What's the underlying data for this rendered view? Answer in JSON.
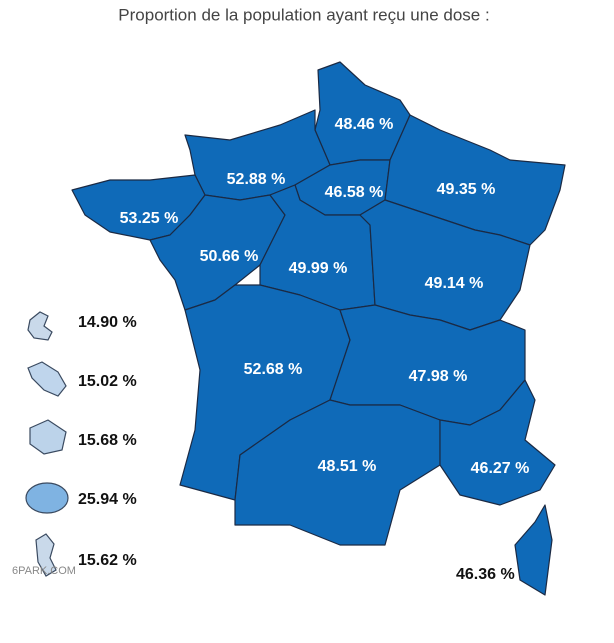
{
  "title": "Proportion de la population ayant reçu une dose :",
  "regions": [
    {
      "label": "48.46 %"
    },
    {
      "label": "52.88 %"
    },
    {
      "label": "46.58 %"
    },
    {
      "label": "49.35 %"
    },
    {
      "label": "53.25 %"
    },
    {
      "label": "50.66 %"
    },
    {
      "label": "49.99 %"
    },
    {
      "label": "49.14 %"
    },
    {
      "label": "52.68 %"
    },
    {
      "label": "47.98 %"
    },
    {
      "label": "48.51 %"
    },
    {
      "label": "46.27 %"
    },
    {
      "label": "46.36 %"
    }
  ],
  "overseas": [
    {
      "label": "14.90 %"
    },
    {
      "label": "15.02 %"
    },
    {
      "label": "15.68 %"
    },
    {
      "label": "25.94 %"
    },
    {
      "label": "15.62 %"
    }
  ],
  "watermark": "6PARK.COM"
}
